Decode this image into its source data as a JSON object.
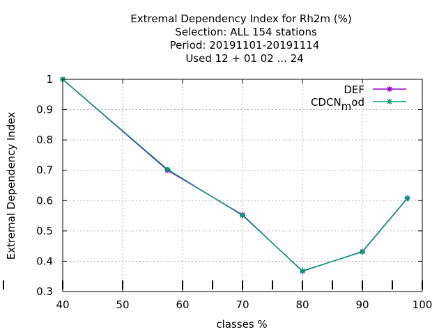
{
  "chart_data": {
    "type": "line",
    "title": [
      "Extremal Dependency Index  for Rh2m (%)",
      "Selection: ALL    154 stations",
      "Period: 20191101-20191114",
      "Used  12 + 01 02 ... 24"
    ],
    "xlabel": "classes %",
    "ylabel": "Extremal Dependency Index",
    "xlim": [
      40,
      100
    ],
    "ylim": [
      0.3,
      1
    ],
    "x_ticks": [
      "40",
      "50",
      "60",
      "70",
      "80",
      "90",
      "100"
    ],
    "y_ticks": [
      "0.3",
      "0.4",
      "0.5",
      "0.6",
      "0.7",
      "0.8",
      "0.9",
      "1"
    ],
    "grid": true,
    "legend_position": "top-right",
    "series": [
      {
        "name": "DEF",
        "color": "#9400d3",
        "x": [
          40,
          57.5,
          70,
          80,
          90,
          97.5
        ],
        "y": [
          1.0,
          0.7,
          0.553,
          0.367,
          0.432,
          0.608
        ]
      },
      {
        "name_main": "CDCN",
        "name_sub": "m",
        "name_rest": "od",
        "color": "#009e73",
        "x": [
          40,
          57.5,
          70,
          80,
          90,
          97.5
        ],
        "y": [
          1.0,
          0.703,
          0.551,
          0.368,
          0.431,
          0.607
        ]
      }
    ],
    "axis_markers_x": [
      40,
      50,
      60,
      65,
      70,
      75,
      80,
      85,
      90,
      95,
      100
    ]
  }
}
